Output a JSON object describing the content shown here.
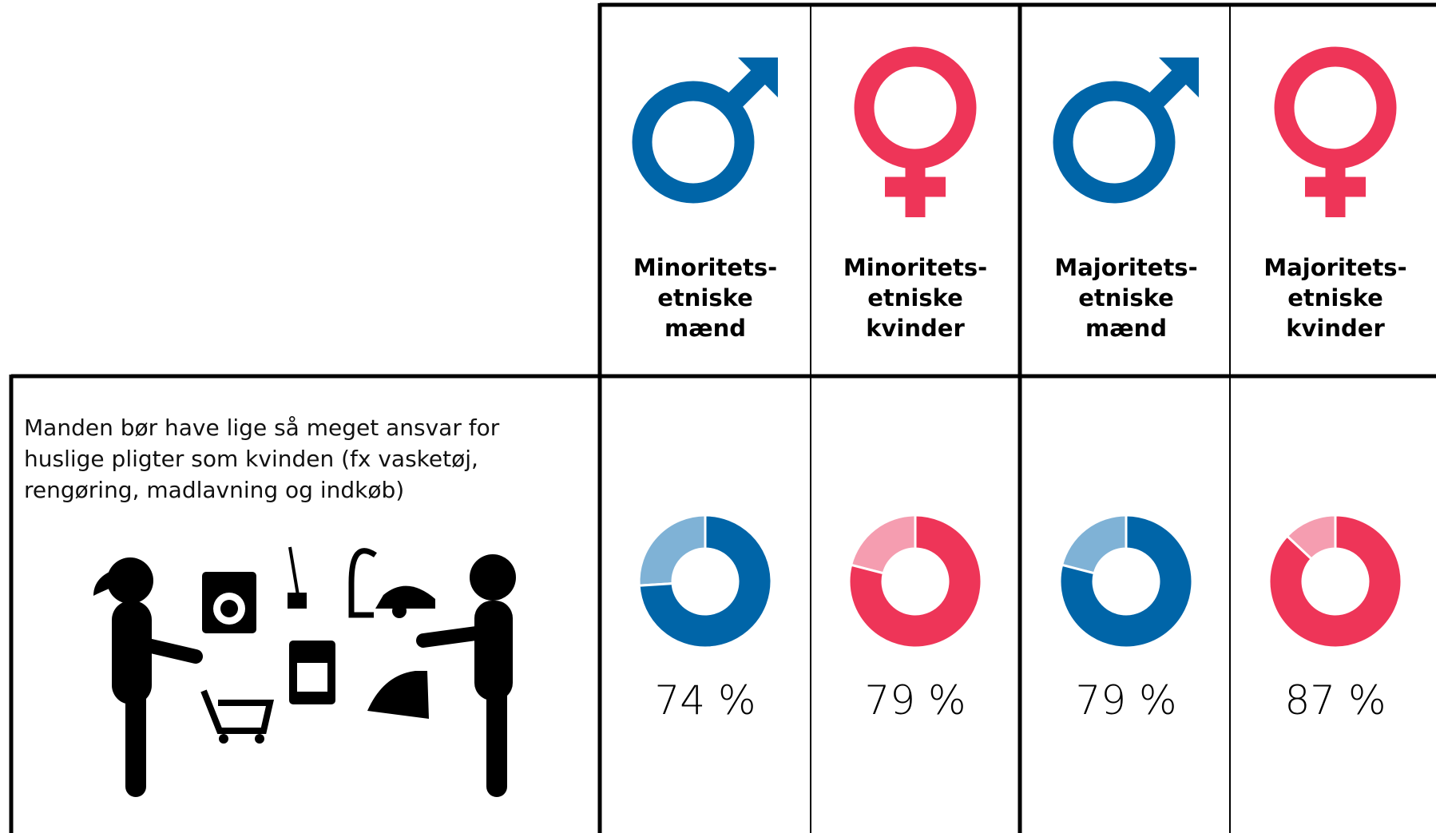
{
  "chart_data": {
    "type": "donut",
    "statement": "Manden bør have lige så meget ansvar for\nhuslige pligter som kvinden (fx vasketøj,\nrengøring, madlavning og indkøb)",
    "categories": [
      "Minoritets-\netniske\nmænd",
      "Minoritets-\netniske\nkvinder",
      "Majoritets-\netniske\nmænd",
      "Majoritets-\netniske\nkvinder"
    ],
    "values": [
      74,
      79,
      79,
      87
    ],
    "value_labels": [
      "74 %",
      "79 %",
      "79 %",
      "87 %"
    ],
    "colors": [
      "#0065a8",
      "#ee3558",
      "#0065a8",
      "#ee3558"
    ],
    "rest_colors": [
      "#7fb2d6",
      "#f59db0",
      "#7fb2d6",
      "#f59db0"
    ]
  }
}
